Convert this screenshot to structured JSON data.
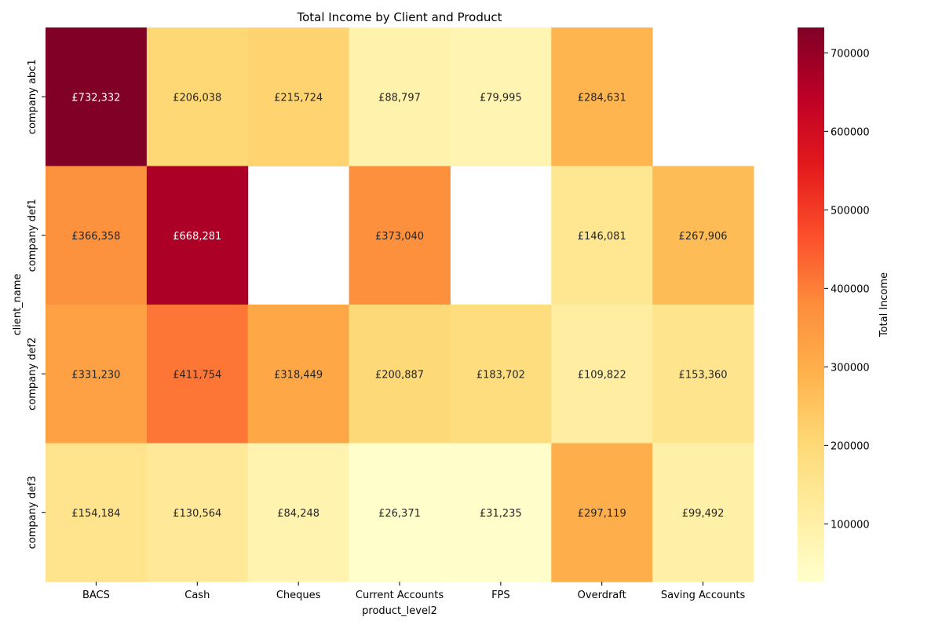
{
  "chart_data": {
    "type": "heatmap",
    "title": "Total Income by Client and Product",
    "xlabel": "product_level2",
    "ylabel": "client_name",
    "colorbar_label": "Total Income",
    "colormap": "YlOrRd",
    "x_categories": [
      "BACS",
      "Cash",
      "Cheques",
      "Current Accounts",
      "FPS",
      "Overdraft",
      "Saving Accounts"
    ],
    "y_categories": [
      "company abc1",
      "company def1",
      "company def2",
      "company def3"
    ],
    "values": [
      [
        732332,
        206038,
        215724,
        88797,
        79995,
        284631,
        null
      ],
      [
        366358,
        668281,
        null,
        373040,
        null,
        146081,
        267906
      ],
      [
        331230,
        411754,
        318449,
        200887,
        183702,
        109822,
        153360
      ],
      [
        154184,
        130564,
        84248,
        26371,
        31235,
        297119,
        99492
      ]
    ],
    "cell_labels": [
      [
        "£732,332",
        "£206,038",
        "£215,724",
        "£88,797",
        "£79,995",
        "£284,631",
        ""
      ],
      [
        "£366,358",
        "£668,281",
        "",
        "£373,040",
        "",
        "£146,081",
        "£267,906"
      ],
      [
        "£331,230",
        "£411,754",
        "£318,449",
        "£200,887",
        "£183,702",
        "£109,822",
        "£153,360"
      ],
      [
        "£154,184",
        "£130,564",
        "£84,248",
        "£26,371",
        "£31,235",
        "£297,119",
        "£99,492"
      ]
    ],
    "color_range": [
      26371,
      732332
    ],
    "colorbar_ticks": [
      100000,
      200000,
      300000,
      400000,
      500000,
      600000,
      700000
    ],
    "colorbar_tick_labels": [
      "100000",
      "200000",
      "300000",
      "400000",
      "500000",
      "600000",
      "700000"
    ]
  }
}
